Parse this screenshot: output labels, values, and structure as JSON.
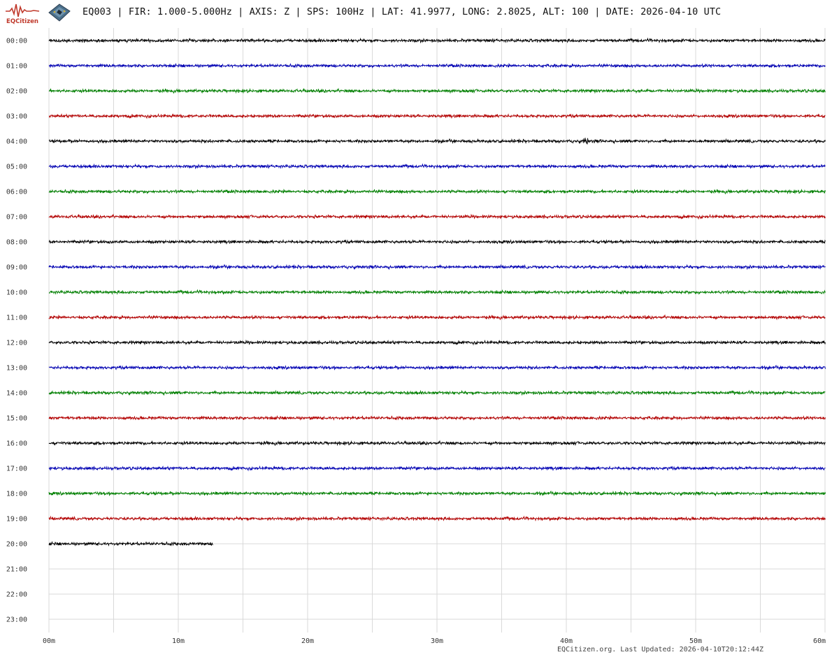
{
  "brand": {
    "logo_text": "EQCitizen",
    "logo_color": "#c0392b"
  },
  "header": {
    "title": "EQ003 | FIR: 1.000-5.000Hz | AXIS: Z | SPS: 100Hz | LAT: 41.9977, LONG: 2.8025, ALT: 100 | DATE: 2026-04-10 UTC"
  },
  "footer": {
    "note": "EQCitizen.org. Last Updated: 2026-04-10T20:12:44Z"
  },
  "chart_data": {
    "type": "helicorder",
    "station": "EQ003",
    "axis": "Z",
    "sps": 100,
    "filter_hz": [
      1.0,
      5.0
    ],
    "date": "2026-04-10",
    "x_unit": "minutes",
    "xlim": [
      0,
      60
    ],
    "x_ticks": [
      {
        "value": 0,
        "label": "00m"
      },
      {
        "value": 10,
        "label": "10m"
      },
      {
        "value": 20,
        "label": "20m"
      },
      {
        "value": 30,
        "label": "30m"
      },
      {
        "value": 40,
        "label": "40m"
      },
      {
        "value": 50,
        "label": "50m"
      },
      {
        "value": 60,
        "label": "60m"
      }
    ],
    "grid": true,
    "rows": [
      {
        "label": "00:00",
        "color": "#000000",
        "end_min": 60
      },
      {
        "label": "01:00",
        "color": "#0000b4",
        "end_min": 60
      },
      {
        "label": "02:00",
        "color": "#008000",
        "end_min": 60
      },
      {
        "label": "03:00",
        "color": "#b40000",
        "end_min": 60
      },
      {
        "label": "04:00",
        "color": "#000000",
        "end_min": 60,
        "event_min": 41.5,
        "event_amp": 3.0
      },
      {
        "label": "05:00",
        "color": "#0000b4",
        "end_min": 60
      },
      {
        "label": "06:00",
        "color": "#008000",
        "end_min": 60
      },
      {
        "label": "07:00",
        "color": "#b40000",
        "end_min": 60
      },
      {
        "label": "08:00",
        "color": "#000000",
        "end_min": 60
      },
      {
        "label": "09:00",
        "color": "#0000b4",
        "end_min": 60
      },
      {
        "label": "10:00",
        "color": "#008000",
        "end_min": 60
      },
      {
        "label": "11:00",
        "color": "#b40000",
        "end_min": 60
      },
      {
        "label": "12:00",
        "color": "#000000",
        "end_min": 60
      },
      {
        "label": "13:00",
        "color": "#0000b4",
        "end_min": 60
      },
      {
        "label": "14:00",
        "color": "#008000",
        "end_min": 60
      },
      {
        "label": "15:00",
        "color": "#b40000",
        "end_min": 60
      },
      {
        "label": "16:00",
        "color": "#000000",
        "end_min": 60
      },
      {
        "label": "17:00",
        "color": "#0000b4",
        "end_min": 60
      },
      {
        "label": "18:00",
        "color": "#008000",
        "end_min": 60
      },
      {
        "label": "19:00",
        "color": "#b40000",
        "end_min": 60
      },
      {
        "label": "20:00",
        "color": "#000000",
        "end_min": 12.7
      },
      {
        "label": "21:00",
        "color": "#0000b4",
        "end_min": 0
      },
      {
        "label": "22:00",
        "color": "#008000",
        "end_min": 0
      },
      {
        "label": "23:00",
        "color": "#b40000",
        "end_min": 0
      }
    ]
  }
}
